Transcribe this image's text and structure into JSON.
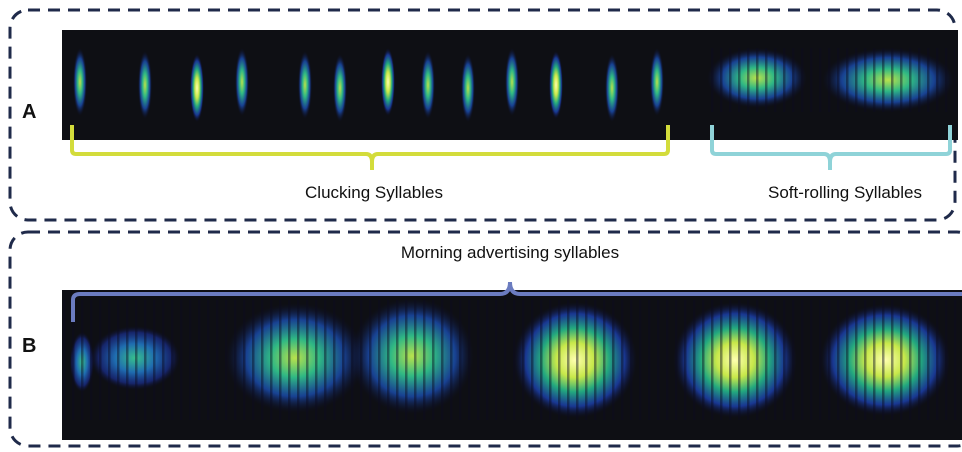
{
  "panels": [
    {
      "label": "A",
      "brackets": [
        {
          "label": "Clucking Syllables"
        },
        {
          "label": "Soft-rolling Syllables"
        }
      ]
    },
    {
      "label": "B",
      "brackets": [
        {
          "label": "Morning advertising syllables"
        }
      ]
    }
  ]
}
